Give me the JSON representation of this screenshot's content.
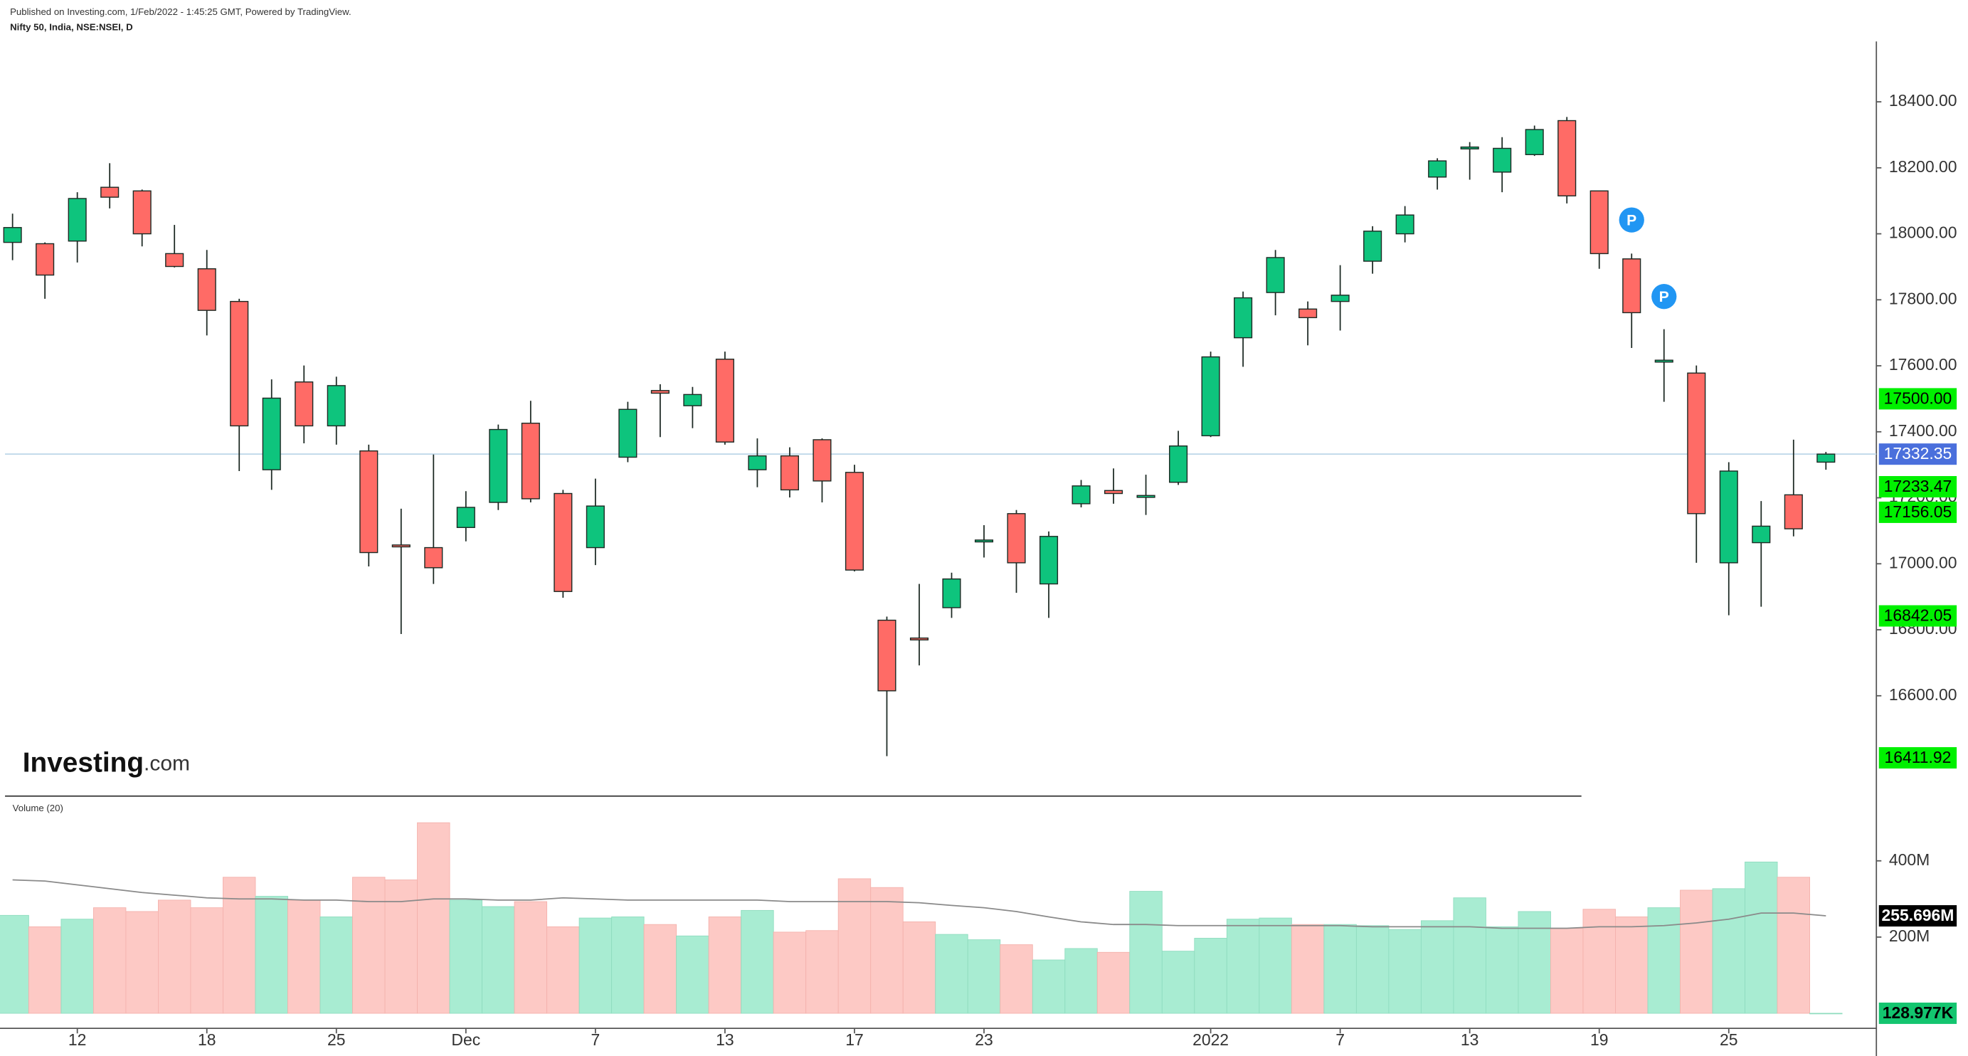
{
  "chart_data": {
    "type": "candlestick",
    "published": "Published on Investing.com, 1/Feb/2022 - 1:45:25 GMT, Powered by TradingView.",
    "title": "Nifty 50, India, NSE:NSEI, D",
    "logo": {
      "name": "Investing",
      "suffix": ".com"
    },
    "categories": [
      null,
      null,
      "12",
      null,
      null,
      null,
      "18",
      null,
      null,
      null,
      "25",
      null,
      null,
      null,
      "Dec",
      null,
      null,
      null,
      "7",
      null,
      null,
      null,
      "13",
      null,
      null,
      null,
      "17",
      null,
      null,
      null,
      "23",
      null,
      null,
      null,
      null,
      null,
      null,
      "2022",
      null,
      null,
      null,
      "7",
      null,
      null,
      null,
      "13",
      null,
      null,
      null,
      "19",
      null,
      null,
      null,
      "25",
      null,
      null,
      null
    ],
    "candles": {
      "open": [
        17974,
        17970,
        17978,
        18141,
        18130,
        17940,
        17894,
        17795,
        17285,
        17551,
        17418,
        17342,
        17057,
        17049,
        17110,
        17186,
        17426,
        17213,
        17049,
        17323,
        17525,
        17479,
        17620,
        17285,
        17327,
        17376,
        17277,
        16829,
        16775,
        16867,
        17068,
        17152,
        16939,
        17182,
        17222,
        17203,
        17247,
        17388,
        17685,
        17822,
        17772,
        17795,
        17917,
        18000,
        18172,
        18260,
        18187,
        18240,
        18343,
        18130,
        17924,
        17613,
        17578,
        17003,
        17064,
        17209,
        17308
      ],
      "high": [
        18061,
        17974,
        18126,
        18214,
        18134,
        18027,
        17951,
        17803,
        17559,
        17601,
        17567,
        17361,
        17167,
        17331,
        17220,
        17422,
        17494,
        17224,
        17258,
        17491,
        17544,
        17536,
        17643,
        17380,
        17353,
        17380,
        17300,
        16840,
        16939,
        16973,
        17117,
        17163,
        17098,
        17254,
        17289,
        17270,
        17403,
        17643,
        17825,
        17951,
        17795,
        17905,
        18023,
        18084,
        18229,
        18278,
        18293,
        18328,
        18354,
        18130,
        17940,
        17711,
        17601,
        17308,
        17190,
        17376,
        17339
      ],
      "low": [
        17920,
        17803,
        17913,
        18077,
        17962,
        17898,
        17692,
        17281,
        17224,
        17365,
        17361,
        16992,
        16787,
        16939,
        17068,
        17163,
        17186,
        16897,
        16996,
        17308,
        17384,
        17411,
        17361,
        17232,
        17201,
        17186,
        16977,
        16417,
        16692,
        16836,
        17019,
        16912,
        16836,
        17171,
        17182,
        17148,
        17239,
        17384,
        17597,
        17753,
        17662,
        17707,
        17879,
        17974,
        18134,
        18164,
        18126,
        18236,
        18092,
        17894,
        17654,
        17491,
        17003,
        16844,
        16870,
        17083,
        17285
      ],
      "close": [
        18019,
        17875,
        18107,
        18111,
        18000,
        17901,
        17768,
        17418,
        17502,
        17418,
        17540,
        17034,
        17054,
        16988,
        17171,
        17407,
        17197,
        16916,
        17175,
        17468,
        17517,
        17513,
        17369,
        17327,
        17224,
        17251,
        16981,
        16615,
        16772,
        16954,
        17072,
        17003,
        17083,
        17236,
        17213,
        17207,
        17357,
        17627,
        17806,
        17928,
        17746,
        17814,
        18008,
        18057,
        18221,
        18263,
        18259,
        18316,
        18115,
        17940,
        17761,
        17617,
        17152,
        17281,
        17114,
        17106,
        17332.35
      ]
    },
    "up_color": "#0ec47d",
    "down_color": "#ff6b66",
    "wick_color": "#1d2a24",
    "ylim": [
      16296,
      18583
    ],
    "yticks": [
      {
        "value": 16600,
        "label": "16600.00"
      },
      {
        "value": 16800,
        "label": "16800.00"
      },
      {
        "value": 17000,
        "label": "17000.00"
      },
      {
        "value": 17200,
        "label": "17200.00"
      },
      {
        "value": 17400,
        "label": "17400.00"
      },
      {
        "value": 17600,
        "label": "17600.00"
      },
      {
        "value": 17800,
        "label": "17800.00"
      },
      {
        "value": 18000,
        "label": "18000.00"
      },
      {
        "value": 18200,
        "label": "18200.00"
      },
      {
        "value": 18400,
        "label": "18400.00"
      }
    ],
    "price_line": {
      "value": 17332.35,
      "color": "#bcd6e8"
    },
    "price_labels": [
      {
        "value": 17500,
        "label": "17500.00",
        "color": "#00f000"
      },
      {
        "value": 17332.35,
        "label": "17332.35",
        "color": "#4a6fdc"
      },
      {
        "value": 17233.47,
        "label": "17233.47",
        "color": "#00f000"
      },
      {
        "value": 17156.05,
        "label": "17156.05",
        "color": "#00f000"
      },
      {
        "value": 16842.05,
        "label": "16842.05",
        "color": "#00f000"
      },
      {
        "value": 16411.92,
        "label": "16411.92",
        "color": "#00f000"
      }
    ],
    "markers": [
      {
        "label": "P",
        "index": 50,
        "value": 18042,
        "color": "#2196f3"
      },
      {
        "label": "P",
        "index": 51,
        "value": 17810,
        "color": "#2196f3"
      }
    ],
    "volume": {
      "title": "Volume (20)",
      "values": [
        257000000,
        227000000,
        247000000,
        277000000,
        267000000,
        297000000,
        277000000,
        357000000,
        307000000,
        297000000,
        253000000,
        357000000,
        350000000,
        500000000,
        297000000,
        280000000,
        293000000,
        227000000,
        250000000,
        253000000,
        233000000,
        203000000,
        253000000,
        270000000,
        213000000,
        217000000,
        353000000,
        330000000,
        240000000,
        207000000,
        193000000,
        180000000,
        140000000,
        170000000,
        160000000,
        320000000,
        163000000,
        197000000,
        247000000,
        250000000,
        233000000,
        233000000,
        230000000,
        220000000,
        243000000,
        303000000,
        227000000,
        267000000,
        223000000,
        273000000,
        253000000,
        277000000,
        323000000,
        327000000,
        397000000,
        357000000,
        128977
      ],
      "ma": [
        350000000,
        347000000,
        337000000,
        327000000,
        317000000,
        310000000,
        303000000,
        300000000,
        300000000,
        297000000,
        297000000,
        293000000,
        293000000,
        300000000,
        300000000,
        297000000,
        297000000,
        303000000,
        300000000,
        297000000,
        297000000,
        297000000,
        297000000,
        297000000,
        293000000,
        293000000,
        293000000,
        293000000,
        290000000,
        283000000,
        277000000,
        267000000,
        253000000,
        240000000,
        233000000,
        233000000,
        230000000,
        230000000,
        230000000,
        230000000,
        230000000,
        230000000,
        227000000,
        227000000,
        227000000,
        227000000,
        223000000,
        223000000,
        223000000,
        227000000,
        227000000,
        230000000,
        237000000,
        247000000,
        263000000,
        263000000,
        255696000
      ],
      "up_color": "#a8ecd2",
      "down_color": "#fdc9c5",
      "ma_color": "#8a8a8a",
      "ylim": [
        0,
        560000000
      ],
      "yticks": [
        {
          "value": 200000000,
          "label": "200M"
        },
        {
          "value": 400000000,
          "label": "400M"
        }
      ],
      "labels": [
        {
          "value": 255696000,
          "label": "255.696M",
          "color": "#000000",
          "text_color": "#ffffff"
        },
        {
          "value": 128977,
          "label": "128.977K",
          "color": "#13c56f",
          "text_color": "#000000"
        }
      ]
    }
  }
}
